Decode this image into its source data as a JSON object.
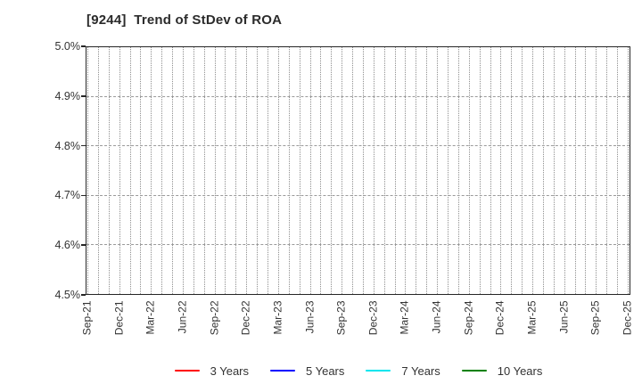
{
  "chart_data": {
    "type": "line",
    "title": "[9244]  Trend of StDev of ROA",
    "xlabel": "",
    "ylabel": "",
    "y_tick_labels": [
      "5.0%",
      "4.9%",
      "4.8%",
      "4.7%",
      "4.6%",
      "4.5%"
    ],
    "ylim": [
      4.5,
      5.0
    ],
    "x_tick_labels": [
      "Sep-21",
      "Dec-21",
      "Mar-22",
      "Jun-22",
      "Sep-22",
      "Dec-22",
      "Mar-23",
      "Jun-23",
      "Sep-23",
      "Dec-23",
      "Mar-24",
      "Jun-24",
      "Sep-24",
      "Dec-24",
      "Mar-25",
      "Jun-25",
      "Sep-25",
      "Dec-25"
    ],
    "x_gridline_interval": "monthly",
    "months_per_labeled_tick": 3,
    "total_vertical_gridlines": 52,
    "grid": true,
    "legend_position": "bottom-center",
    "series": [
      {
        "name": "3 Years",
        "color": "#ff0000",
        "values": []
      },
      {
        "name": "5 Years",
        "color": "#0000ff",
        "values": []
      },
      {
        "name": "7 Years",
        "color": "#00e5ee",
        "values": []
      },
      {
        "name": "10 Years",
        "color": "#008000",
        "values": []
      }
    ]
  },
  "colors": {
    "axis": "#262626",
    "grid": "#999999",
    "text": "#333333",
    "background": "#ffffff"
  }
}
